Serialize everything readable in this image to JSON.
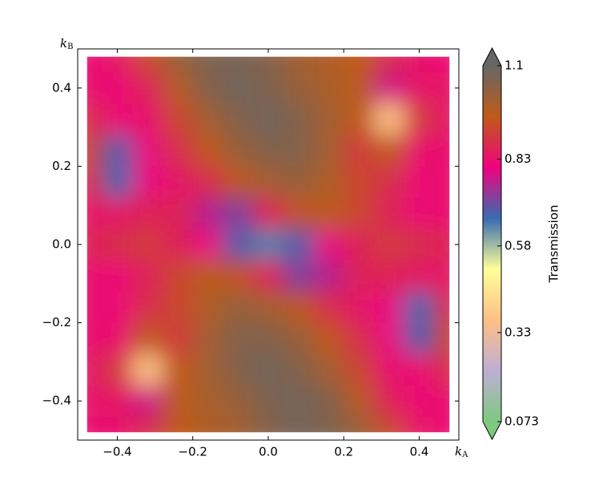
{
  "chart_data": {
    "type": "heatmap",
    "xlabel": [
      "k",
      "A"
    ],
    "ylabel": [
      "k",
      "B"
    ],
    "colorbar_label": "Transmission",
    "x": [
      -0.48,
      -0.4,
      -0.32,
      -0.24,
      -0.16,
      -0.08,
      0,
      0.08,
      0.16,
      0.24,
      0.32,
      0.4,
      0.48
    ],
    "y": [
      0.48,
      0.4,
      0.32,
      0.24,
      0.16,
      0.08,
      0,
      -0.08,
      -0.16,
      -0.24,
      -0.32,
      -0.4,
      -0.48
    ],
    "z": [
      [
        0.82,
        0.84,
        0.93,
        1.02,
        1.06,
        1.07,
        1.05,
        1.0,
        0.98,
        0.95,
        0.88,
        0.83,
        0.82
      ],
      [
        0.83,
        0.82,
        0.86,
        0.97,
        1.05,
        1.08,
        1.06,
        1.02,
        0.99,
        0.96,
        0.78,
        0.84,
        0.84
      ],
      [
        0.88,
        0.82,
        0.83,
        0.92,
        1.0,
        1.05,
        1.08,
        1.05,
        1.0,
        0.95,
        0.37,
        0.9,
        0.84
      ],
      [
        0.92,
        0.68,
        0.8,
        0.88,
        0.95,
        1.02,
        1.05,
        1.05,
        1.0,
        0.9,
        0.95,
        0.83,
        0.83
      ],
      [
        0.88,
        0.67,
        0.8,
        0.84,
        0.88,
        0.95,
        1.0,
        1.02,
        0.98,
        0.92,
        0.88,
        0.82,
        0.83
      ],
      [
        0.84,
        0.84,
        0.86,
        0.86,
        0.76,
        0.72,
        0.86,
        0.94,
        0.96,
        0.92,
        0.86,
        0.82,
        0.83
      ],
      [
        0.86,
        0.88,
        0.9,
        0.86,
        0.8,
        0.68,
        0.64,
        0.68,
        0.8,
        0.86,
        0.9,
        0.88,
        0.86
      ],
      [
        0.83,
        0.82,
        0.86,
        0.92,
        0.96,
        0.94,
        0.86,
        0.72,
        0.76,
        0.86,
        0.86,
        0.84,
        0.84
      ],
      [
        0.83,
        0.82,
        0.88,
        0.92,
        0.98,
        1.02,
        1.0,
        0.95,
        0.88,
        0.84,
        0.8,
        0.67,
        0.88
      ],
      [
        0.83,
        0.83,
        0.95,
        0.9,
        1.0,
        1.05,
        1.05,
        1.02,
        0.95,
        0.88,
        0.8,
        0.68,
        0.92
      ],
      [
        0.84,
        0.9,
        0.37,
        0.95,
        1.0,
        1.05,
        1.08,
        1.05,
        1.0,
        0.92,
        0.83,
        0.82,
        0.88
      ],
      [
        0.84,
        0.84,
        0.78,
        0.96,
        0.99,
        1.02,
        1.06,
        1.08,
        1.05,
        0.97,
        0.86,
        0.82,
        0.83
      ],
      [
        0.82,
        0.83,
        0.88,
        0.95,
        0.98,
        1.0,
        1.05,
        1.07,
        1.06,
        1.02,
        0.93,
        0.84,
        0.82
      ]
    ],
    "colormap": [
      "#7fc97f",
      "#beaed4",
      "#fdc086",
      "#ffff99",
      "#386cb0",
      "#f0027f",
      "#bf5b17",
      "#666666"
    ],
    "vlim": [
      0.073,
      1.1
    ],
    "colorbar_ticks": [
      0.073,
      0.33,
      0.58,
      0.83,
      1.1
    ],
    "colorbar_extend": "both",
    "xlim": [
      -0.505,
      0.505
    ],
    "ylim": [
      -0.5,
      0.5
    ],
    "xticks": [
      {
        "value": -0.4,
        "label": "−0.4"
      },
      {
        "value": -0.2,
        "label": "−0.2"
      },
      {
        "value": 0.0,
        "label": "0.0"
      },
      {
        "value": 0.2,
        "label": "0.2"
      },
      {
        "value": 0.4,
        "label": "0.4"
      }
    ],
    "yticks": [
      {
        "value": -0.4,
        "label": "−0.4"
      },
      {
        "value": -0.2,
        "label": "−0.2"
      },
      {
        "value": 0.0,
        "label": "0.0"
      },
      {
        "value": 0.2,
        "label": "0.2"
      },
      {
        "value": 0.4,
        "label": "0.4"
      }
    ]
  }
}
